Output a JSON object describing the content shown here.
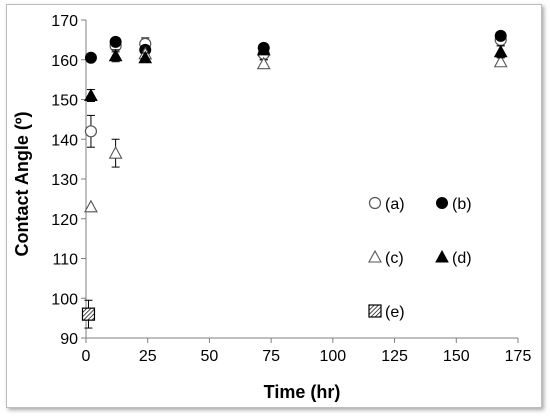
{
  "chart_data": {
    "type": "scatter",
    "xlabel": "Time (hr)",
    "ylabel": "Contact Angle (º)",
    "xlim": [
      0,
      175
    ],
    "ylim": [
      90,
      170
    ],
    "xticks": [
      "0",
      "25",
      "50",
      "75",
      "100",
      "125",
      "150",
      "175"
    ],
    "yticks": [
      "90",
      "100",
      "110",
      "120",
      "130",
      "140",
      "150",
      "160",
      "170"
    ],
    "grid": false,
    "legend_position": "right",
    "series": [
      {
        "name": "(a)",
        "marker": "circle-open",
        "x": [
          2,
          12,
          24,
          72,
          168
        ],
        "y": [
          142,
          163.5,
          164,
          161.5,
          165
        ],
        "err": [
          4,
          1.5,
          1.5,
          1.5,
          1.5
        ]
      },
      {
        "name": "(b)",
        "marker": "circle-filled",
        "x": [
          2,
          12,
          24,
          72,
          168
        ],
        "y": [
          160.5,
          164.5,
          162.5,
          163,
          166
        ],
        "err": [
          0.5,
          1,
          1,
          0.8,
          1
        ]
      },
      {
        "name": "(c)",
        "marker": "triangle-open",
        "x": [
          2,
          12,
          24,
          72,
          168
        ],
        "y": [
          123,
          136.5,
          161.5,
          159,
          159.5
        ],
        "err": [
          0,
          3.5,
          1,
          1,
          1
        ]
      },
      {
        "name": "(d)",
        "marker": "triangle-filled",
        "x": [
          2,
          12,
          24,
          72,
          168
        ],
        "y": [
          151,
          161,
          160.5,
          162.5,
          162
        ],
        "err": [
          1.5,
          1.5,
          1.2,
          1,
          1.5
        ]
      },
      {
        "name": "(e)",
        "marker": "square-hatched",
        "x": [
          1
        ],
        "y": [
          96
        ],
        "err": [
          3.5
        ]
      }
    ]
  }
}
